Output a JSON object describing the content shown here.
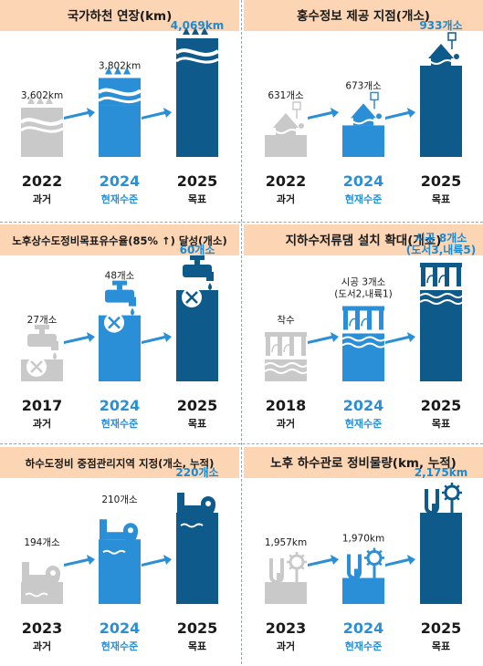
{
  "colors": {
    "header_bg": "#fcd5b4",
    "past_bar": "#c9c9c9",
    "current_bar": "#2a8fd6",
    "target_bar": "#0e5a8a",
    "current_text": "#2a8fd6",
    "target_text": "#1b8ad0",
    "arrow": "#2a8fd6"
  },
  "chart_data": [
    {
      "type": "bar",
      "title": "국가하천 연장(km)",
      "categories": [
        "2022",
        "2024",
        "2025"
      ],
      "sublabels": [
        "과거",
        "현재수준",
        "목표"
      ],
      "values": [
        3602,
        3802,
        4069
      ],
      "value_labels": [
        "3,602km",
        "3,802km",
        "4,069km"
      ],
      "icon": "river-icon"
    },
    {
      "type": "bar",
      "title": "홍수정보 제공 지점(개소)",
      "categories": [
        "2022",
        "2024",
        "2025"
      ],
      "sublabels": [
        "과거",
        "현재수준",
        "목표"
      ],
      "values": [
        631,
        673,
        933
      ],
      "value_labels": [
        "631개소",
        "673개소",
        "933개소"
      ],
      "icon": "flood-house-icon"
    },
    {
      "type": "bar",
      "title": "노후상수도정비목표유수율(85% ↑) 달성(개소)",
      "categories": [
        "2017",
        "2024",
        "2025"
      ],
      "sublabels": [
        "과거",
        "현재수준",
        "목표"
      ],
      "values": [
        27,
        48,
        60
      ],
      "value_labels": [
        "27개소",
        "48개소",
        "60개소"
      ],
      "icon": "faucet-icon"
    },
    {
      "type": "bar",
      "title": "지하수저류댐 설치 확대(개소)",
      "categories": [
        "2018",
        "2024",
        "2025"
      ],
      "sublabels": [
        "과거",
        "현재수준",
        "목표"
      ],
      "values": [
        0,
        3,
        8
      ],
      "value_labels": [
        "착수",
        "시공 3개소\n(도서2,내륙1)",
        "시공 8개소\n(도서3,내륙5)"
      ],
      "icon": "dam-icon"
    },
    {
      "type": "bar",
      "title": "하수도정비 중점관리지역 지정(개소, 누적)",
      "categories": [
        "2023",
        "2024",
        "2025"
      ],
      "sublabels": [
        "과거",
        "현재수준",
        "목표"
      ],
      "values": [
        194,
        210,
        220
      ],
      "value_labels": [
        "194개소",
        "210개소",
        "220개소"
      ],
      "icon": "sewer-pin-icon"
    },
    {
      "type": "bar",
      "title": "노후 하수관로 정비물량(km, 누적)",
      "categories": [
        "2023",
        "2024",
        "2025"
      ],
      "sublabels": [
        "과거",
        "현재수준",
        "목표"
      ],
      "values": [
        1957,
        1970,
        2175
      ],
      "value_labels": [
        "1,957km",
        "1,970km",
        "2,175km"
      ],
      "icon": "pipe-gear-icon"
    }
  ]
}
